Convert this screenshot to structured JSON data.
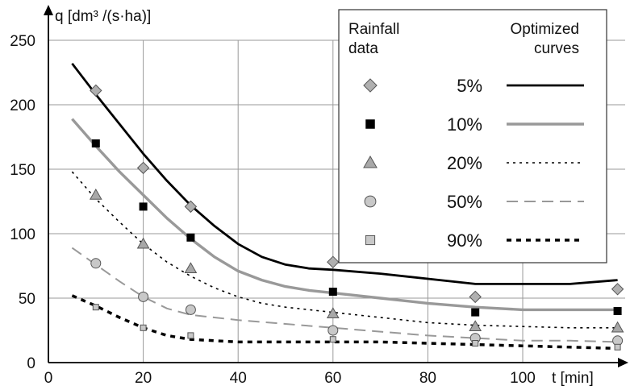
{
  "chart_data": {
    "type": "scatter",
    "title": "",
    "ylabel": "q [dm³ /(s·ha)]",
    "xlabel": "t [min]",
    "xlim": [
      0,
      120
    ],
    "ylim": [
      0,
      250
    ],
    "xticks": [
      "0",
      "20",
      "40",
      "60",
      "80",
      "100"
    ],
    "yticks": [
      "0",
      "50",
      "100",
      "150",
      "200",
      "250"
    ],
    "grid": true,
    "legend": {
      "placement": "top-right",
      "header_markers": "Rainfall data",
      "header_curves": "Optimized curves"
    },
    "series": [
      {
        "name": "5%",
        "marker": "diamond",
        "marker_color": "#b0b0b0",
        "line_style": "solid",
        "line_color": "#000000",
        "points": [
          [
            10,
            211
          ],
          [
            20,
            151
          ],
          [
            30,
            121
          ],
          [
            60,
            78
          ],
          [
            90,
            51
          ],
          [
            120,
            57
          ]
        ],
        "curve": [
          [
            5,
            232
          ],
          [
            10,
            208
          ],
          [
            15,
            185
          ],
          [
            20,
            162
          ],
          [
            25,
            141
          ],
          [
            30,
            122
          ],
          [
            35,
            106
          ],
          [
            40,
            92
          ],
          [
            45,
            82
          ],
          [
            50,
            76
          ],
          [
            55,
            73
          ],
          [
            60,
            72
          ],
          [
            70,
            69
          ],
          [
            80,
            65
          ],
          [
            90,
            61
          ],
          [
            100,
            61
          ],
          [
            110,
            61
          ],
          [
            120,
            64
          ]
        ]
      },
      {
        "name": "10%",
        "marker": "square",
        "marker_color": "#000000",
        "line_style": "solid",
        "line_color": "#999999",
        "points": [
          [
            10,
            170
          ],
          [
            20,
            121
          ],
          [
            30,
            97
          ],
          [
            60,
            55
          ],
          [
            90,
            39
          ],
          [
            120,
            40
          ]
        ],
        "curve": [
          [
            5,
            189
          ],
          [
            10,
            168
          ],
          [
            15,
            148
          ],
          [
            20,
            130
          ],
          [
            25,
            112
          ],
          [
            30,
            96
          ],
          [
            35,
            82
          ],
          [
            40,
            71
          ],
          [
            45,
            64
          ],
          [
            50,
            59
          ],
          [
            55,
            56
          ],
          [
            60,
            54
          ],
          [
            70,
            50
          ],
          [
            80,
            46
          ],
          [
            90,
            43
          ],
          [
            100,
            41
          ],
          [
            110,
            41
          ],
          [
            120,
            41
          ]
        ]
      },
      {
        "name": "20%",
        "marker": "triangle",
        "marker_color": "#a8a8a8",
        "line_style": "dotted",
        "line_color": "#000000",
        "points": [
          [
            10,
            130
          ],
          [
            20,
            92
          ],
          [
            30,
            73
          ],
          [
            60,
            38
          ],
          [
            90,
            28
          ],
          [
            120,
            27
          ]
        ],
        "curve": [
          [
            5,
            148
          ],
          [
            10,
            127
          ],
          [
            15,
            109
          ],
          [
            20,
            92
          ],
          [
            25,
            78
          ],
          [
            30,
            67
          ],
          [
            35,
            58
          ],
          [
            40,
            51
          ],
          [
            45,
            46
          ],
          [
            50,
            43
          ],
          [
            60,
            39
          ],
          [
            70,
            35
          ],
          [
            80,
            31
          ],
          [
            90,
            29
          ],
          [
            100,
            28
          ],
          [
            110,
            27
          ],
          [
            120,
            27
          ]
        ]
      },
      {
        "name": "50%",
        "marker": "circle",
        "marker_color": "#c8c8c8",
        "line_style": "dashed",
        "line_color": "#999999",
        "points": [
          [
            10,
            77
          ],
          [
            20,
            51
          ],
          [
            30,
            41
          ],
          [
            60,
            25
          ],
          [
            90,
            19
          ],
          [
            120,
            17
          ]
        ],
        "curve": [
          [
            5,
            89
          ],
          [
            10,
            76
          ],
          [
            15,
            63
          ],
          [
            20,
            51
          ],
          [
            25,
            42
          ],
          [
            30,
            37
          ],
          [
            35,
            35
          ],
          [
            40,
            33
          ],
          [
            50,
            30
          ],
          [
            60,
            27
          ],
          [
            70,
            24
          ],
          [
            80,
            21
          ],
          [
            90,
            19
          ],
          [
            100,
            17
          ],
          [
            110,
            17
          ],
          [
            120,
            16
          ]
        ]
      },
      {
        "name": "90%",
        "marker": "square-small",
        "marker_color": "#c8c8c8",
        "line_style": "dashed-bold",
        "line_color": "#000000",
        "points": [
          [
            10,
            43
          ],
          [
            20,
            27
          ],
          [
            30,
            21
          ],
          [
            60,
            18
          ],
          [
            90,
            15
          ],
          [
            120,
            12
          ]
        ],
        "curve": [
          [
            5,
            52
          ],
          [
            10,
            44
          ],
          [
            15,
            35
          ],
          [
            20,
            27
          ],
          [
            25,
            21
          ],
          [
            30,
            18
          ],
          [
            35,
            17
          ],
          [
            40,
            16
          ],
          [
            50,
            16
          ],
          [
            60,
            16
          ],
          [
            70,
            16
          ],
          [
            80,
            15
          ],
          [
            90,
            14
          ],
          [
            100,
            13
          ],
          [
            110,
            12
          ],
          [
            120,
            11
          ]
        ]
      }
    ]
  }
}
